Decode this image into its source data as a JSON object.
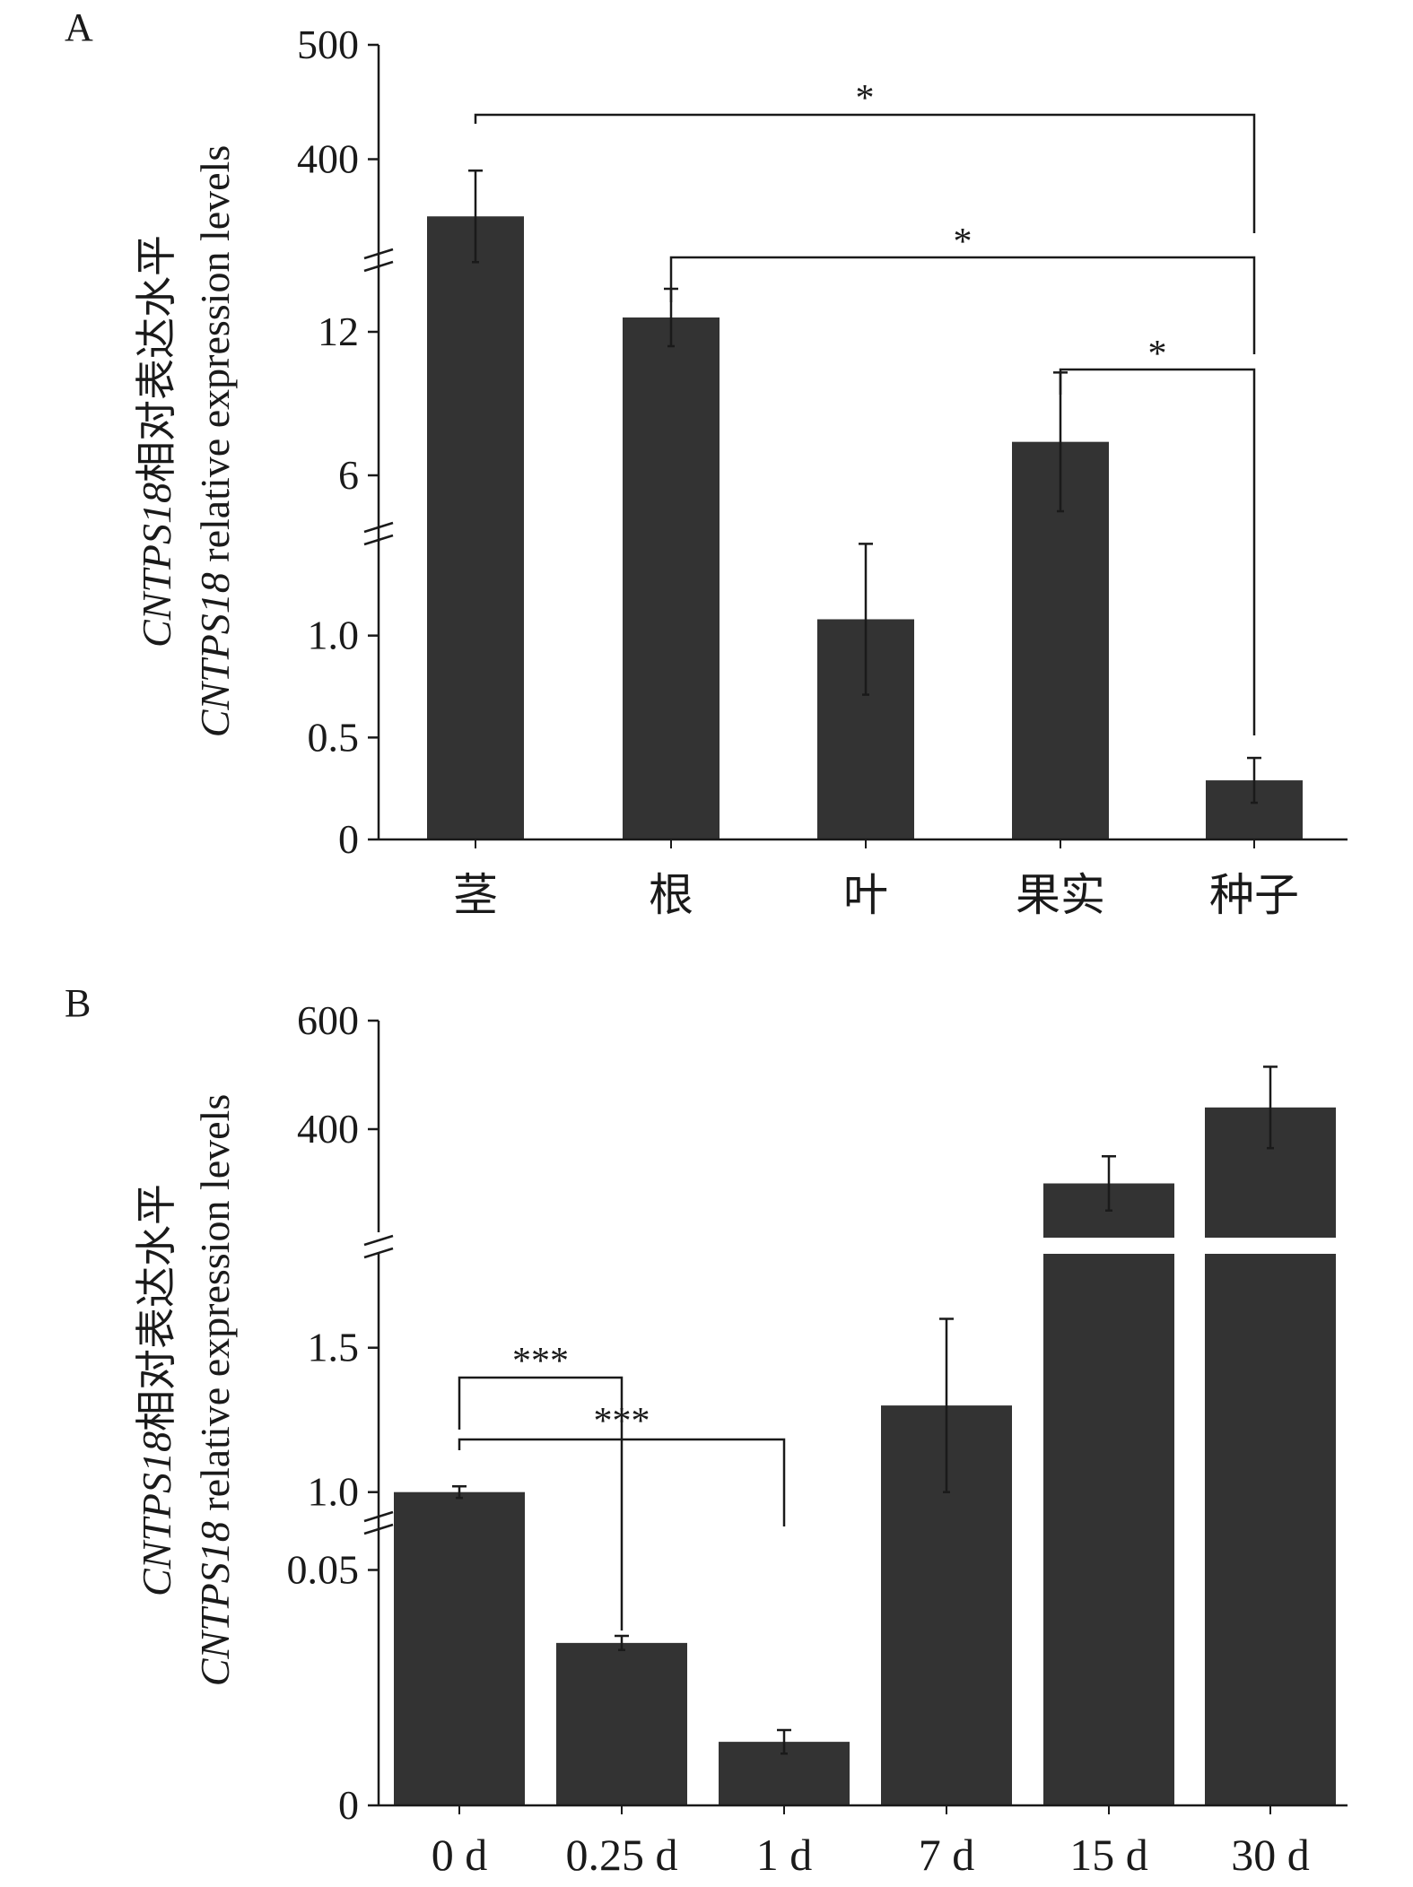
{
  "chart_data": [
    {
      "type": "bar",
      "panel_label": "A",
      "ylabel_line1_italic": "CNTPS18",
      "ylabel_line1_rest": "相对表达水平",
      "ylabel_line2_italic": "CNTPS18",
      "ylabel_line2_rest": " relative expression levels",
      "categories": [
        "茎",
        "根",
        "叶",
        "果实",
        "种子"
      ],
      "values": [
        350,
        12.6,
        1.08,
        7.4,
        0.29
      ],
      "errors": [
        40,
        1.2,
        0.37,
        2.9,
        0.11
      ],
      "y_segments": [
        {
          "range": [
            0,
            1.5
          ],
          "ticks": [
            "0",
            "0.5",
            "1.0"
          ],
          "tick_values": [
            0,
            0.5,
            1.0
          ]
        },
        {
          "range": [
            3,
            15
          ],
          "ticks": [
            "6",
            "12"
          ],
          "tick_values": [
            6,
            12
          ]
        },
        {
          "range": [
            300,
            500
          ],
          "ticks": [
            "400",
            "500"
          ],
          "tick_values": [
            400,
            500
          ]
        }
      ],
      "axis_breaks": true,
      "significance": [
        {
          "from": "茎",
          "to": "种子",
          "label": "*"
        },
        {
          "from": "根",
          "to": "种子",
          "label": "*"
        },
        {
          "from": "果实",
          "to": "种子",
          "label": "*"
        }
      ],
      "bar_color": "#333333"
    },
    {
      "type": "bar",
      "panel_label": "B",
      "ylabel_line1_italic": "CNTPS18",
      "ylabel_line1_rest": "相对表达水平",
      "ylabel_line2_italic": "CNTPS18",
      "ylabel_line2_rest": " relative expression levels",
      "categories": [
        "0 d",
        "0.25 d",
        "1 d",
        "7 d",
        "15 d",
        "30 d"
      ],
      "values": [
        1.0,
        0.0345,
        0.0135,
        1.3,
        300,
        440
      ],
      "errors": [
        0.02,
        0.0015,
        0.0025,
        0.3,
        50,
        75
      ],
      "y_segments": [
        {
          "range": [
            0,
            0.06
          ],
          "ticks": [
            "0",
            "0.05"
          ],
          "tick_values": [
            0,
            0.05
          ]
        },
        {
          "range": [
            0.85,
            1.85
          ],
          "ticks": [
            "1.0",
            "1.5"
          ],
          "tick_values": [
            1.0,
            1.5
          ]
        },
        {
          "range": [
            200,
            600
          ],
          "ticks": [
            "400",
            "600"
          ],
          "tick_values": [
            400,
            600
          ]
        }
      ],
      "axis_breaks": true,
      "significance": [
        {
          "from": "0 d",
          "to": "0.25 d",
          "label": "***"
        },
        {
          "from": "0 d",
          "to": "1 d",
          "label": "***"
        }
      ],
      "bar_color": "#333333"
    }
  ]
}
